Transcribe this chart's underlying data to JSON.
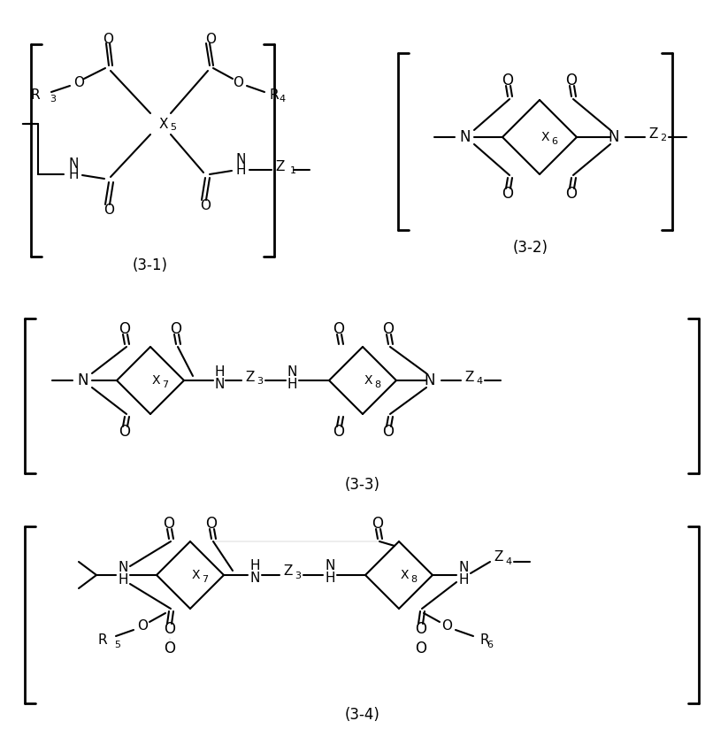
{
  "bg_color": "#ffffff",
  "line_color": "#000000",
  "text_color": "#000000",
  "figsize": [
    8.23,
    8.5
  ],
  "dpi": 100,
  "label_31": "(3-1)",
  "label_32": "(3-2)",
  "label_33": "(3-3)",
  "label_34": "(3-4)"
}
